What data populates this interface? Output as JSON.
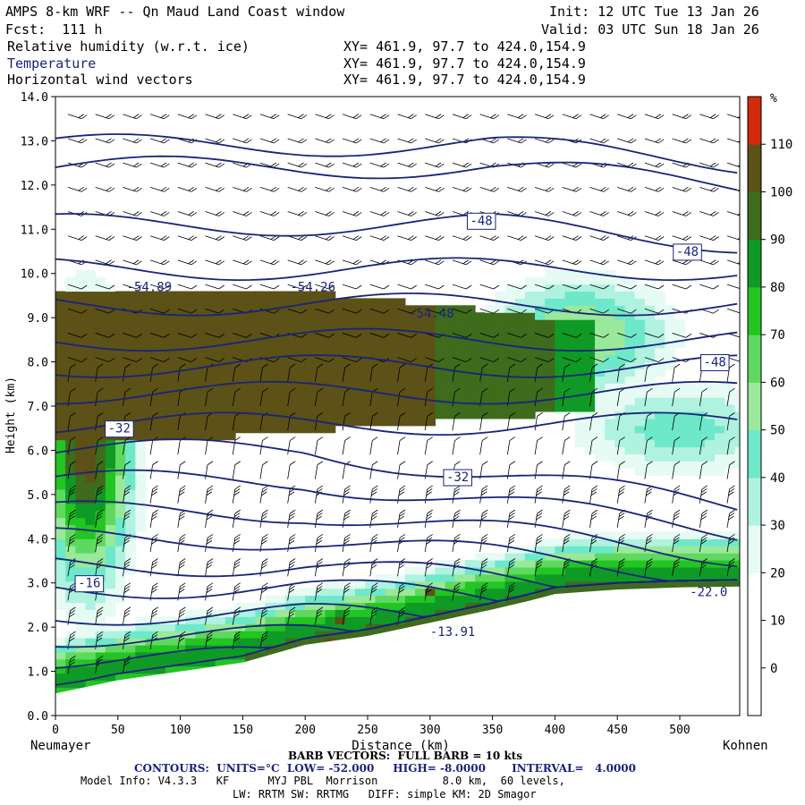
{
  "header": {
    "title": "AMPS 8-km WRF -- Qn Maud Land Coast window",
    "init": "Init: 12 UTC Tue 13 Jan 26",
    "fcst": "Fcst:  111 h",
    "valid": "Valid: 03 UTC Sun 18 Jan 26",
    "fields": [
      {
        "label": "Relative humidity (w.r.t. ice)",
        "xy": "XY= 461.9, 97.7 to 424.0,154.9"
      },
      {
        "label": "Temperature",
        "xy": "XY= 461.9, 97.7 to 424.0,154.9"
      },
      {
        "label": "Horizontal wind vectors",
        "xy": "XY= 461.9, 97.7 to 424.0,154.9"
      }
    ]
  },
  "chart_data": {
    "type": "heatmap",
    "xlabel": "Distance (km)",
    "ylabel": "Height (km)",
    "xlim": [
      0,
      548
    ],
    "ylim": [
      0,
      14
    ],
    "x_ticks": [
      0,
      50,
      100,
      150,
      200,
      250,
      300,
      350,
      400,
      450,
      500
    ],
    "y_ticks": [
      "0.0",
      "1.0",
      "2.0",
      "3.0",
      "4.0",
      "5.0",
      "6.0",
      "7.0",
      "8.0",
      "9.0",
      "10.0",
      "11.0",
      "12.0",
      "13.0",
      "14.0"
    ],
    "start_label": "Neumayer",
    "end_label": "Kohnen",
    "colorbar": {
      "unit": "%",
      "ticks": [
        0,
        10,
        20,
        30,
        40,
        50,
        60,
        70,
        80,
        90,
        100,
        110
      ],
      "colors": [
        "#ffffff",
        "#ffffff",
        "#ffffff",
        "#e6fbf4",
        "#aef2df",
        "#6de8c8",
        "#9ae89a",
        "#5fd85f",
        "#22c522",
        "#0f9a26",
        "#3e6b1c",
        "#5c5116",
        "#d42a0c"
      ]
    },
    "terrain": [
      [
        0,
        0.5
      ],
      [
        50,
        0.8
      ],
      [
        100,
        1.0
      ],
      [
        150,
        1.2
      ],
      [
        200,
        1.6
      ],
      [
        250,
        1.8
      ],
      [
        300,
        2.1
      ],
      [
        350,
        2.4
      ],
      [
        380,
        2.6
      ],
      [
        400,
        2.75
      ],
      [
        450,
        2.85
      ],
      [
        500,
        2.9
      ],
      [
        548,
        2.92
      ]
    ],
    "temperature_labels": [
      {
        "text": "-48",
        "x": 332,
        "y": 11.1,
        "boxed": true
      },
      {
        "text": "-48",
        "x": 497,
        "y": 10.4,
        "boxed": true
      },
      {
        "text": "-48",
        "x": 519,
        "y": 7.9,
        "boxed": true
      },
      {
        "text": "-54.89",
        "x": 57,
        "y": 9.6,
        "boxed": false
      },
      {
        "text": "-54.26",
        "x": 188,
        "y": 9.6,
        "boxed": false
      },
      {
        "text": "-54.48",
        "x": 283,
        "y": 9.0,
        "boxed": false
      },
      {
        "text": "-32",
        "x": 42,
        "y": 6.4,
        "boxed": true
      },
      {
        "text": "-32",
        "x": 313,
        "y": 5.3,
        "boxed": true
      },
      {
        "text": "-16",
        "x": 18,
        "y": 2.9,
        "boxed": true
      },
      {
        "text": "-22.0",
        "x": 508,
        "y": 2.7,
        "boxed": false
      },
      {
        "text": "-13.91",
        "x": 300,
        "y": 1.8,
        "boxed": false
      }
    ]
  },
  "footer": {
    "barb": "BARB VECTORS:  FULL BARB = 10 kts",
    "contours": "CONTOURS:  UNITS=°C  LOW= -52.000     HIGH= -8.0000       INTERVAL=   4.0000",
    "model": "Model Info: V4.3.3   KF      MYJ PBL  Morrison          8.0 km,  60 levels,",
    "physics": "LW: RRTM SW: RRTMG   DIFF: simple KM: 2D Smagor"
  },
  "colors": {
    "contour": "#1a237e",
    "terrain": "#ffffff",
    "frame": "#000000"
  }
}
